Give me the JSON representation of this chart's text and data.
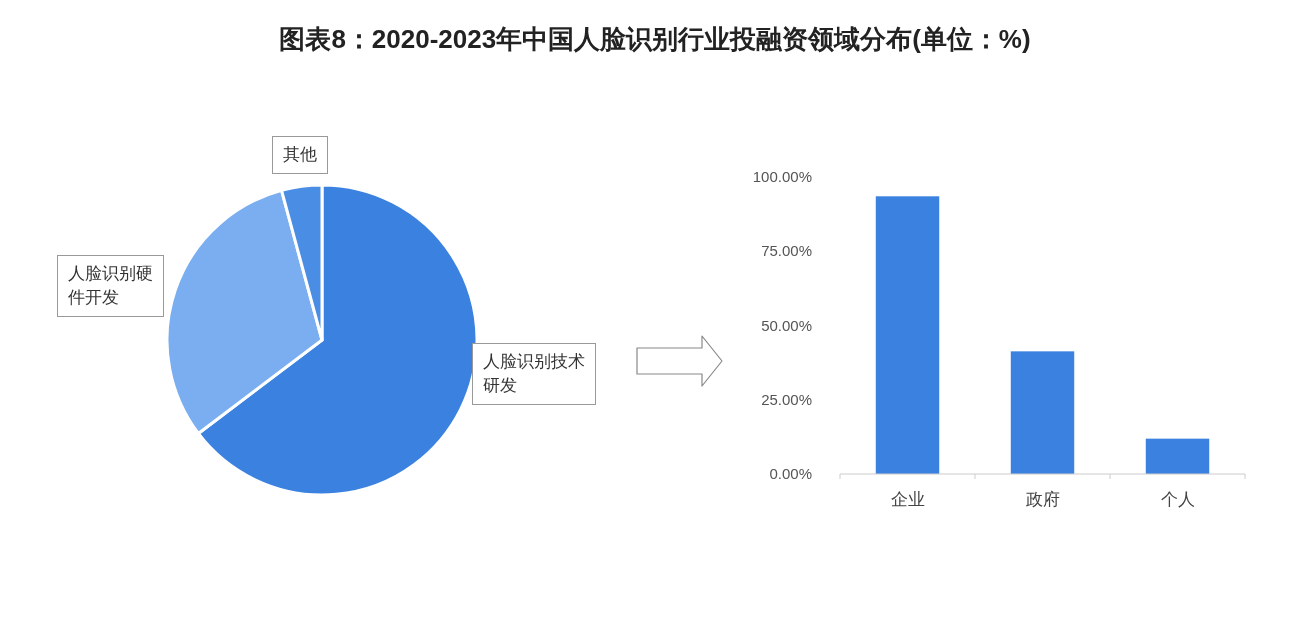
{
  "chart_data": [
    {
      "type": "pie",
      "title": "图表8：2020-2023年中国人脸识别行业投融资领域分布(单位：%)",
      "categories": [
        "人脸识别技术研发",
        "人脸识别硬件开发",
        "其他"
      ],
      "values": [
        64.7,
        31.1,
        4.2
      ],
      "colors": [
        "#3b82e0",
        "#7aaef0",
        "#4a8de4"
      ]
    },
    {
      "type": "bar",
      "categories": [
        "企业",
        "政府",
        "个人"
      ],
      "values": [
        93.5,
        41.3,
        11.9
      ],
      "color": "#3b82e0",
      "ylim": [
        0,
        100
      ],
      "yticks": [
        {
          "value": 0,
          "label": "0.00%"
        },
        {
          "value": 25,
          "label": "25.00%"
        },
        {
          "value": 50,
          "label": "50.00%"
        },
        {
          "value": 75,
          "label": "75.00%"
        },
        {
          "value": 100,
          "label": "100.00%"
        }
      ]
    }
  ]
}
